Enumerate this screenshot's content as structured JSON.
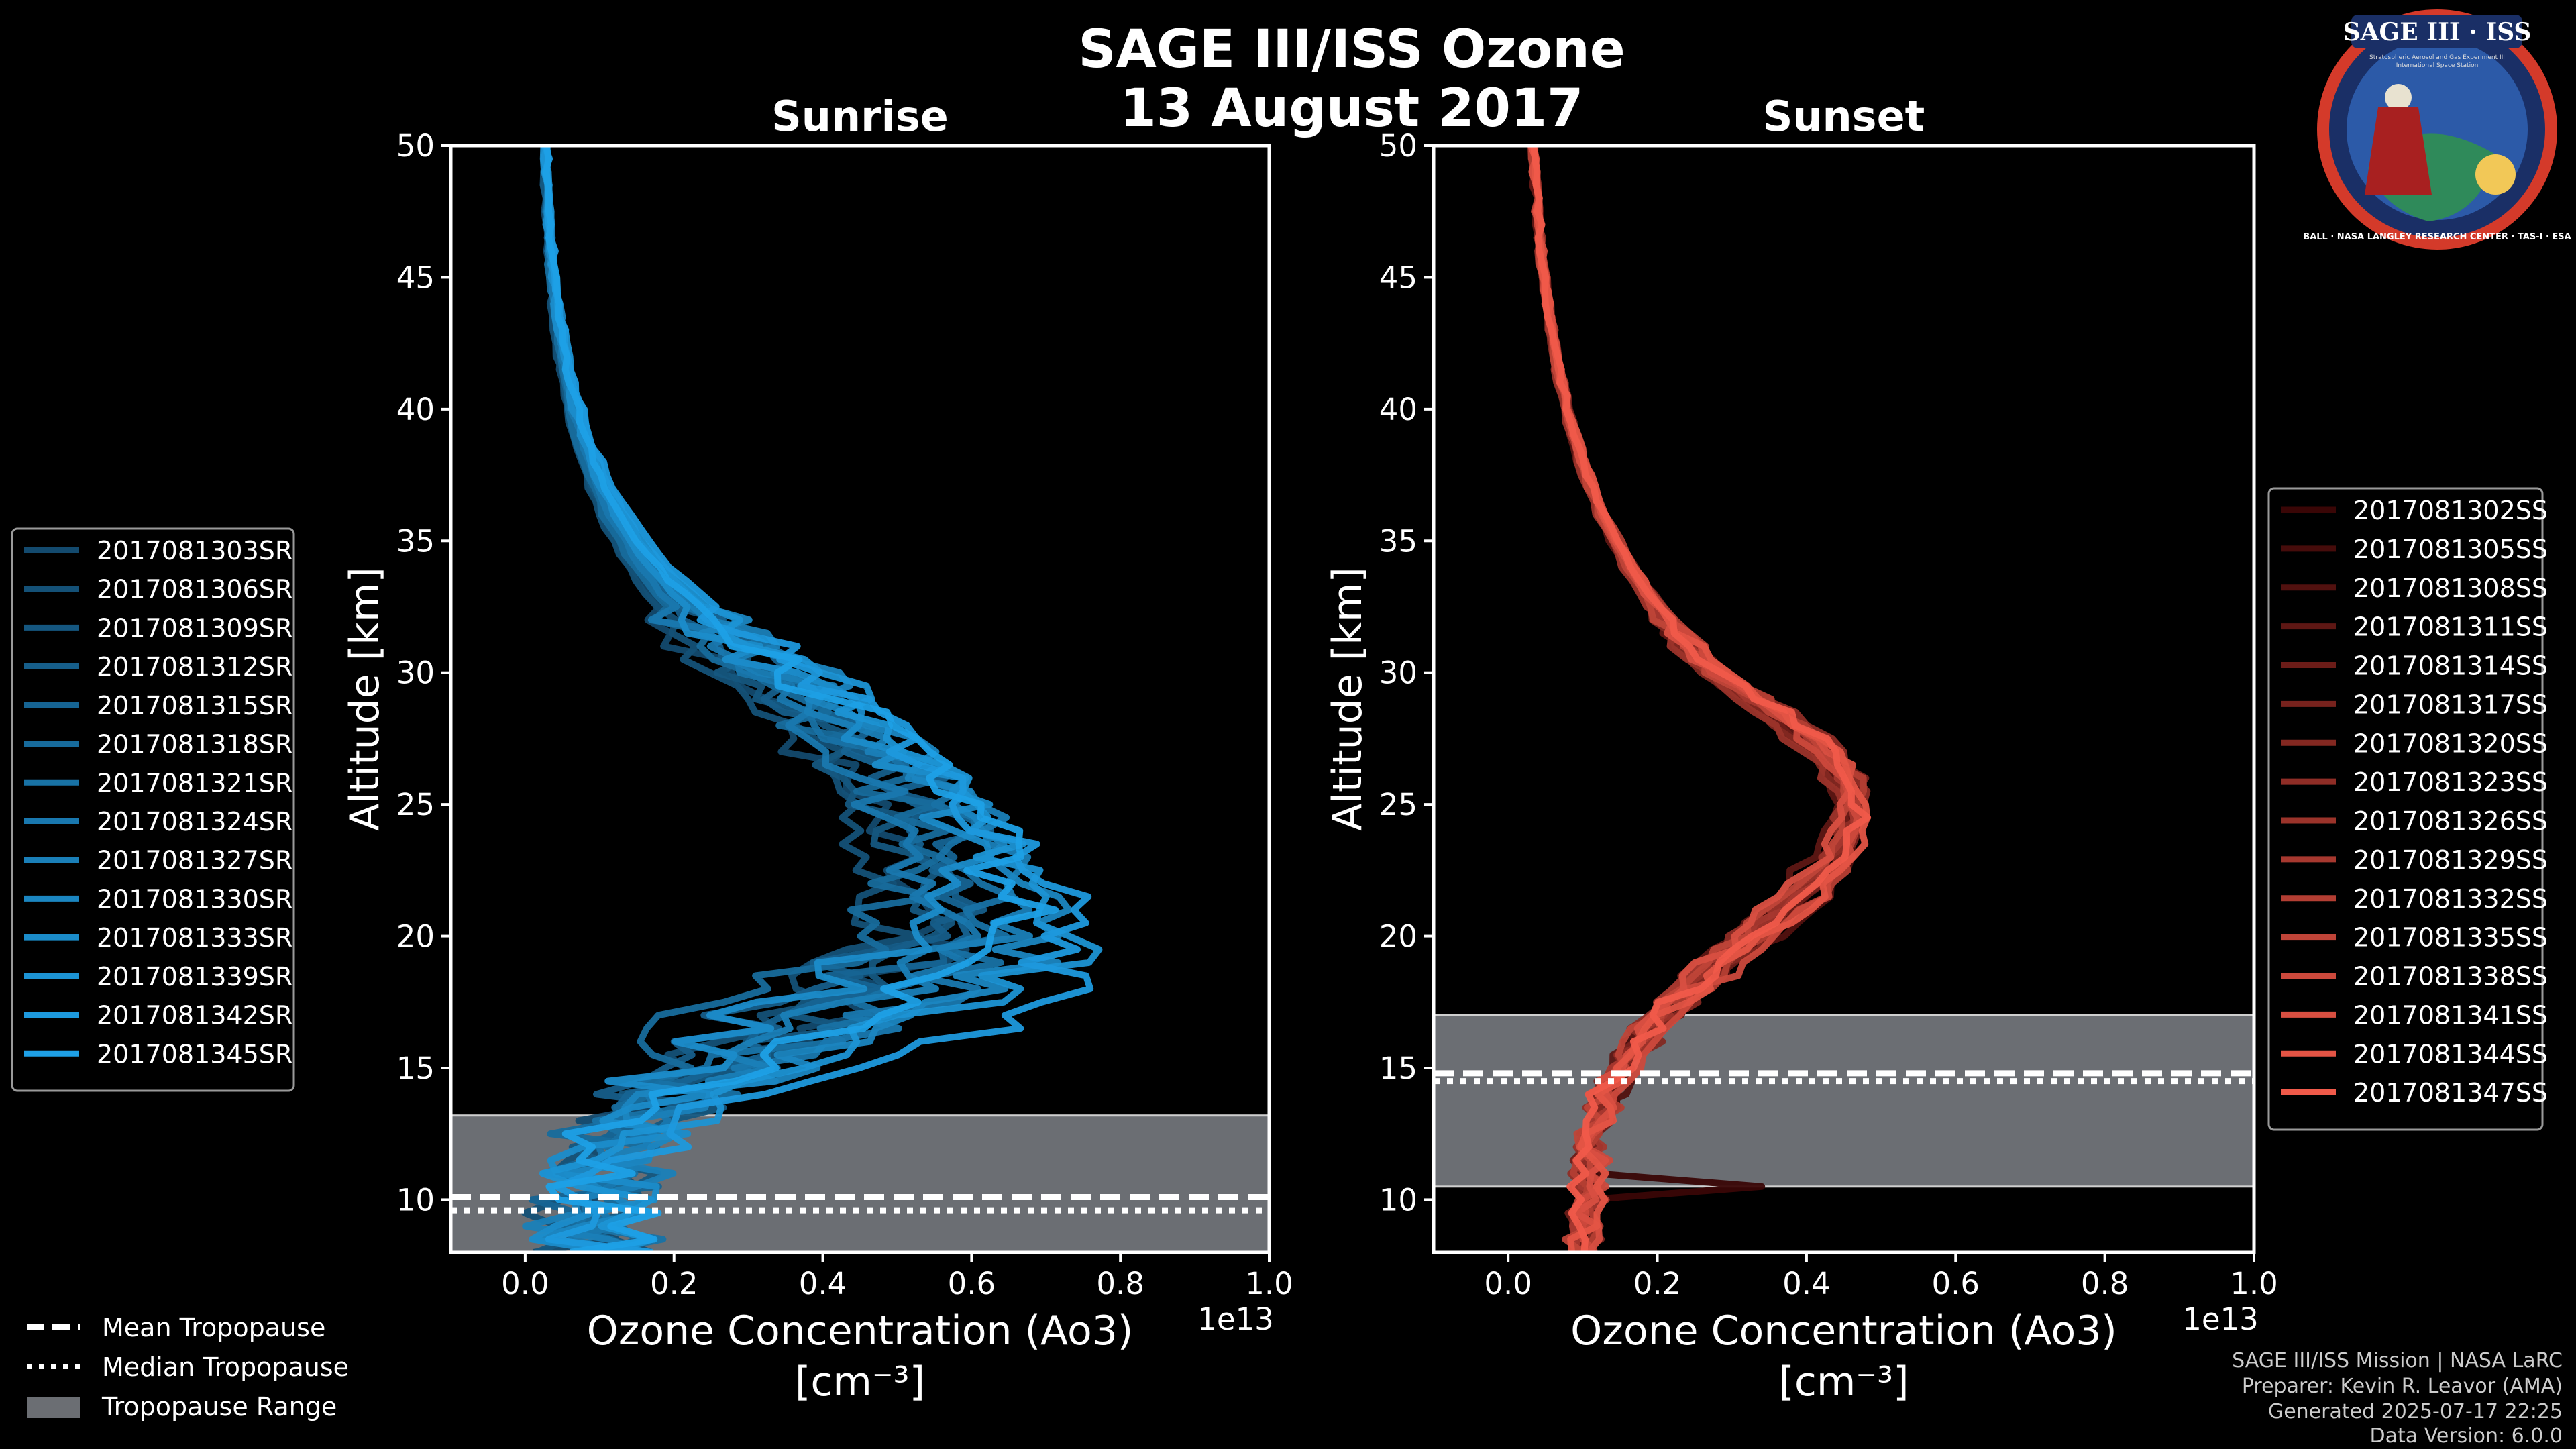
{
  "header": {
    "title_line1": "SAGE III/ISS Ozone",
    "title_line2": "13 August 2017"
  },
  "logo": {
    "text": "SAGE III · ISS",
    "subtext_left": "Stratospheric Aerosol and Gas Experiment III",
    "subtext_right": "International Space Station",
    "ring_text": "BALL · NASA LANGLEY RESEARCH CENTER · TAS-I · ESA"
  },
  "footer": {
    "line1": "SAGE III/ISS Mission | NASA LaRC",
    "line2": "Preparer: Kevin R. Leavor (AMA)",
    "line3": "Generated 2025-07-17 22:25",
    "line4": "Data Version: 6.0.0"
  },
  "tropopause_legend": {
    "mean": "Mean Tropopause",
    "median": "Median Tropopause",
    "range": "Tropopause Range"
  },
  "chart_data": [
    {
      "type": "line",
      "title": "Sunrise",
      "xlabel": "Ozone Concentration (Ao3)",
      "xunit": "[cm⁻³]",
      "x_multiplier": "1e13",
      "ylabel": "Altitude [km]",
      "xlim": [
        -0.1,
        1.0
      ],
      "ylim": [
        8,
        50
      ],
      "xticks": [
        "0.0",
        "0.2",
        "0.4",
        "0.6",
        "0.8",
        "1.0"
      ],
      "yticks": [
        "10",
        "15",
        "20",
        "25",
        "30",
        "35",
        "40",
        "45",
        "50"
      ],
      "tropopause": {
        "mean": 10.1,
        "median": 9.6,
        "range": [
          8,
          13.2
        ]
      },
      "color_dark": "#134a6e",
      "color_light": "#1ea0e6",
      "series": [
        {
          "name": "2017081303SR",
          "peak": 0.52,
          "peak_alt": 19.5
        },
        {
          "name": "2017081306SR",
          "peak": 0.5,
          "peak_alt": 21.0
        },
        {
          "name": "2017081309SR",
          "peak": 0.55,
          "peak_alt": 20.0
        },
        {
          "name": "2017081312SR",
          "peak": 0.58,
          "peak_alt": 22.0
        },
        {
          "name": "2017081315SR",
          "peak": 0.6,
          "peak_alt": 21.5
        },
        {
          "name": "2017081318SR",
          "peak": 0.53,
          "peak_alt": 23.0
        },
        {
          "name": "2017081321SR",
          "peak": 0.62,
          "peak_alt": 20.5
        },
        {
          "name": "2017081324SR",
          "peak": 0.57,
          "peak_alt": 19.0
        },
        {
          "name": "2017081327SR",
          "peak": 0.65,
          "peak_alt": 21.0
        },
        {
          "name": "2017081330SR",
          "peak": 0.68,
          "peak_alt": 20.0
        },
        {
          "name": "2017081333SR",
          "peak": 0.61,
          "peak_alt": 22.5
        },
        {
          "name": "2017081339SR",
          "peak": 0.7,
          "peak_alt": 19.5
        },
        {
          "name": "2017081342SR",
          "peak": 0.73,
          "peak_alt": 18.5
        },
        {
          "name": "2017081345SR",
          "peak": 0.66,
          "peak_alt": 20.5
        }
      ]
    },
    {
      "type": "line",
      "title": "Sunset",
      "xlabel": "Ozone Concentration (Ao3)",
      "xunit": "[cm⁻³]",
      "x_multiplier": "1e13",
      "ylabel": "Altitude [km]",
      "xlim": [
        -0.1,
        1.0
      ],
      "ylim": [
        8,
        50
      ],
      "xticks": [
        "0.0",
        "0.2",
        "0.4",
        "0.6",
        "0.8",
        "1.0"
      ],
      "yticks": [
        "10",
        "15",
        "20",
        "25",
        "30",
        "35",
        "40",
        "45",
        "50"
      ],
      "tropopause": {
        "mean": 14.8,
        "median": 14.5,
        "range": [
          10.5,
          17.0
        ]
      },
      "color_dark": "#3a0606",
      "color_light": "#f05a4a",
      "series": [
        {
          "name": "2017081302SS",
          "peak": 0.46,
          "peak_alt": 24.5
        },
        {
          "name": "2017081305SS",
          "peak": 0.45,
          "peak_alt": 25.0
        },
        {
          "name": "2017081308SS",
          "peak": 0.47,
          "peak_alt": 24.0
        },
        {
          "name": "2017081311SS",
          "peak": 0.44,
          "peak_alt": 25.5
        },
        {
          "name": "2017081314SS",
          "peak": 0.46,
          "peak_alt": 24.5
        },
        {
          "name": "2017081317SS",
          "peak": 0.48,
          "peak_alt": 25.0
        },
        {
          "name": "2017081320SS",
          "peak": 0.45,
          "peak_alt": 24.0
        },
        {
          "name": "2017081323SS",
          "peak": 0.47,
          "peak_alt": 25.5
        },
        {
          "name": "2017081326SS",
          "peak": 0.44,
          "peak_alt": 24.5
        },
        {
          "name": "2017081329SS",
          "peak": 0.46,
          "peak_alt": 25.0
        },
        {
          "name": "2017081332SS",
          "peak": 0.48,
          "peak_alt": 24.5
        },
        {
          "name": "2017081335SS",
          "peak": 0.45,
          "peak_alt": 25.0
        },
        {
          "name": "2017081338SS",
          "peak": 0.47,
          "peak_alt": 24.0
        },
        {
          "name": "2017081341SS",
          "peak": 0.46,
          "peak_alt": 25.5
        },
        {
          "name": "2017081344SS",
          "peak": 0.48,
          "peak_alt": 24.5
        },
        {
          "name": "2017081347SS",
          "peak": 0.47,
          "peak_alt": 25.0
        }
      ]
    }
  ]
}
